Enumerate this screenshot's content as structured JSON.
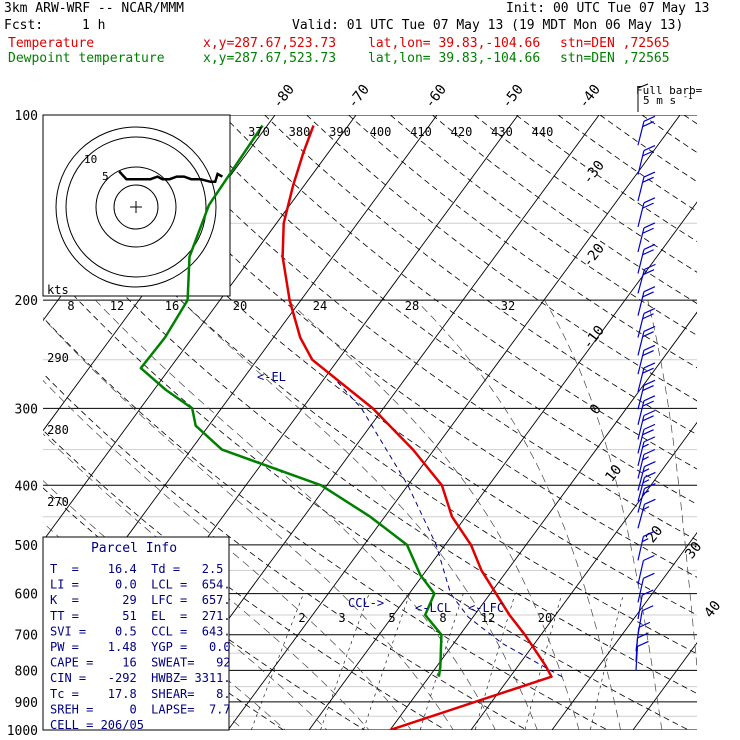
{
  "header": {
    "model": "3km ARW-WRF -- NCAR/MMM",
    "init": "Init: 00 UTC Tue 07 May 13",
    "fcst_label": "Fcst:",
    "fcst_value": "1 h",
    "valid": "Valid: 01 UTC Tue 07 May 13 (19 MDT Mon 06 May 13)",
    "temp_label": "Temperature",
    "dew_label": "Dewpoint temperature",
    "xy": "x,y=287.67,523.73",
    "latlon": "lat,lon= 39.83,-104.66",
    "stn": "stn=DEN ,72565"
  },
  "colors": {
    "temperature": "#e00000",
    "dewpoint": "#008000",
    "wind": "#0000cc",
    "parcel": "#000080",
    "label_blue": "#000080"
  },
  "chart_data": {
    "type": "line",
    "chart_kind": "Skew-T log-P diagram",
    "pressure_levels": [
      "100",
      "200",
      "300",
      "400",
      "500",
      "600",
      "700",
      "800",
      "900",
      "1000"
    ],
    "isotherm_labels": [
      "-80",
      "-70",
      "-60",
      "-50",
      "-40",
      "-30",
      "-20",
      "-10",
      "0",
      "10",
      "20",
      "30",
      "40"
    ],
    "theta_e_labels": [
      "370",
      "380",
      "390",
      "400",
      "410",
      "420",
      "430",
      "440"
    ],
    "theta_labels": [
      "290",
      "280",
      "270"
    ],
    "mixing_ratio_labels": [
      "2",
      "3",
      "5",
      "8",
      "12",
      "20"
    ],
    "hodograph": {
      "units": "kts",
      "speed_labels": [
        "8",
        "12",
        "16",
        "20",
        "24",
        "28",
        "32"
      ],
      "ring_labels": [
        "5",
        "10"
      ],
      "trace": [
        [
          -7,
          6
        ],
        [
          -4,
          3
        ],
        [
          -2,
          3
        ],
        [
          3,
          3
        ],
        [
          6,
          3
        ],
        [
          9,
          4
        ],
        [
          11,
          3
        ],
        [
          14,
          3
        ],
        [
          17,
          4
        ],
        [
          20,
          4
        ],
        [
          23,
          3
        ],
        [
          27,
          3
        ],
        [
          31,
          2
        ],
        [
          33,
          2
        ],
        [
          34,
          5
        ],
        [
          36,
          4
        ]
      ]
    },
    "series": [
      {
        "name": "Temperature",
        "color": "#e00000",
        "points": [
          [
            1000,
            0
          ],
          [
            819,
            15.1
          ],
          [
            785,
            13.3
          ],
          [
            750,
            11.2
          ],
          [
            700,
            8
          ],
          [
            650,
            4.3
          ],
          [
            600,
            0.7
          ],
          [
            550,
            -3.2
          ],
          [
            500,
            -6.8
          ],
          [
            450,
            -11.7
          ],
          [
            400,
            -15.8
          ],
          [
            350,
            -22.6
          ],
          [
            300,
            -31.3
          ],
          [
            250,
            -43.2
          ],
          [
            230,
            -46.7
          ],
          [
            200,
            -51.4
          ],
          [
            170,
            -56.2
          ],
          [
            150,
            -59.1
          ],
          [
            130,
            -61.4
          ],
          [
            115,
            -63.1
          ],
          [
            104,
            -64.3
          ]
        ]
      },
      {
        "name": "Dewpoint temperature",
        "color": "#008000",
        "points": [
          [
            819,
            1.2
          ],
          [
            790,
            0.5
          ],
          [
            750,
            -0.7
          ],
          [
            700,
            -2.3
          ],
          [
            650,
            -6.1
          ],
          [
            600,
            -6.9
          ],
          [
            560,
            -10.3
          ],
          [
            500,
            -14.7
          ],
          [
            450,
            -21.8
          ],
          [
            400,
            -30.7
          ],
          [
            350,
            -46.2
          ],
          [
            320,
            -51.6
          ],
          [
            300,
            -53.6
          ],
          [
            280,
            -58.5
          ],
          [
            258,
            -63.6
          ],
          [
            230,
            -63.4
          ],
          [
            200,
            -64
          ],
          [
            170,
            -67.7
          ],
          [
            140,
            -70
          ],
          [
            120,
            -70.3
          ],
          [
            104,
            -70.6
          ]
        ]
      }
    ],
    "parcel_path": [
      [
        819,
        16.4
      ],
      [
        723,
        6
      ],
      [
        655,
        -0.6
      ],
      [
        600,
        -4.9
      ],
      [
        500,
        -11.1
      ],
      [
        400,
        -20
      ],
      [
        300,
        -32.7
      ],
      [
        271,
        -38.2
      ]
    ],
    "level_labels": [
      "<-EL",
      "CCL->",
      "<-LCL",
      "<-LFC"
    ],
    "wind_barb_title": "Full barb=",
    "wind_barb_units": "5 m s",
    "wind_barb_exp": "-1",
    "wind_barbs": [
      {
        "p": 112,
        "spd": 20,
        "dir": 315
      },
      {
        "p": 125,
        "spd": 20,
        "dir": 315
      },
      {
        "p": 138,
        "spd": 20,
        "dir": 315
      },
      {
        "p": 152,
        "spd": 20,
        "dir": 315
      },
      {
        "p": 167,
        "spd": 20,
        "dir": 315
      },
      {
        "p": 181,
        "spd": 20,
        "dir": 315
      },
      {
        "p": 195,
        "spd": 20,
        "dir": 310
      },
      {
        "p": 212,
        "spd": 20,
        "dir": 315
      },
      {
        "p": 230,
        "spd": 20,
        "dir": 315
      },
      {
        "p": 246,
        "spd": 20,
        "dir": 315
      },
      {
        "p": 264,
        "spd": 20,
        "dir": 315
      },
      {
        "p": 282,
        "spd": 20,
        "dir": 315
      },
      {
        "p": 301,
        "spd": 20,
        "dir": 315
      },
      {
        "p": 319,
        "spd": 20,
        "dir": 315
      },
      {
        "p": 337,
        "spd": 20,
        "dir": 315
      },
      {
        "p": 355,
        "spd": 20,
        "dir": 315
      },
      {
        "p": 372,
        "spd": 15,
        "dir": 315
      },
      {
        "p": 390,
        "spd": 15,
        "dir": 315
      },
      {
        "p": 408,
        "spd": 15,
        "dir": 310
      },
      {
        "p": 425,
        "spd": 15,
        "dir": 310
      },
      {
        "p": 443,
        "spd": 15,
        "dir": 310
      },
      {
        "p": 470,
        "spd": 15,
        "dir": 310
      },
      {
        "p": 530,
        "spd": 15,
        "dir": 320
      },
      {
        "p": 580,
        "spd": 10,
        "dir": 320
      },
      {
        "p": 620,
        "spd": 10,
        "dir": 320
      },
      {
        "p": 660,
        "spd": 10,
        "dir": 330
      },
      {
        "p": 700,
        "spd": 10,
        "dir": 330
      },
      {
        "p": 745,
        "spd": 10,
        "dir": 340
      },
      {
        "p": 775,
        "spd": 10,
        "dir": 350
      },
      {
        "p": 800,
        "spd": 10,
        "dir": 350
      }
    ]
  },
  "parcel_info": {
    "title": "Parcel Info",
    "rows": [
      "T  =    16.4  Td =   2.5",
      "LI =     0.0  LCL =  654.",
      "K  =      29  LFC =  657.",
      "TT =      51  EL  =  271.",
      "SVI =    0.5  CCL =  643.",
      "PW =    1.48  YGP =   0.0",
      "CAPE =    16  SWEAT=   92",
      "CIN =   -292  HWBZ= 3311.",
      "Tc =    17.8  SHEAR=   8.",
      "SREH =     0  LAPSE=  7.7",
      "CELL = 206/05"
    ]
  }
}
